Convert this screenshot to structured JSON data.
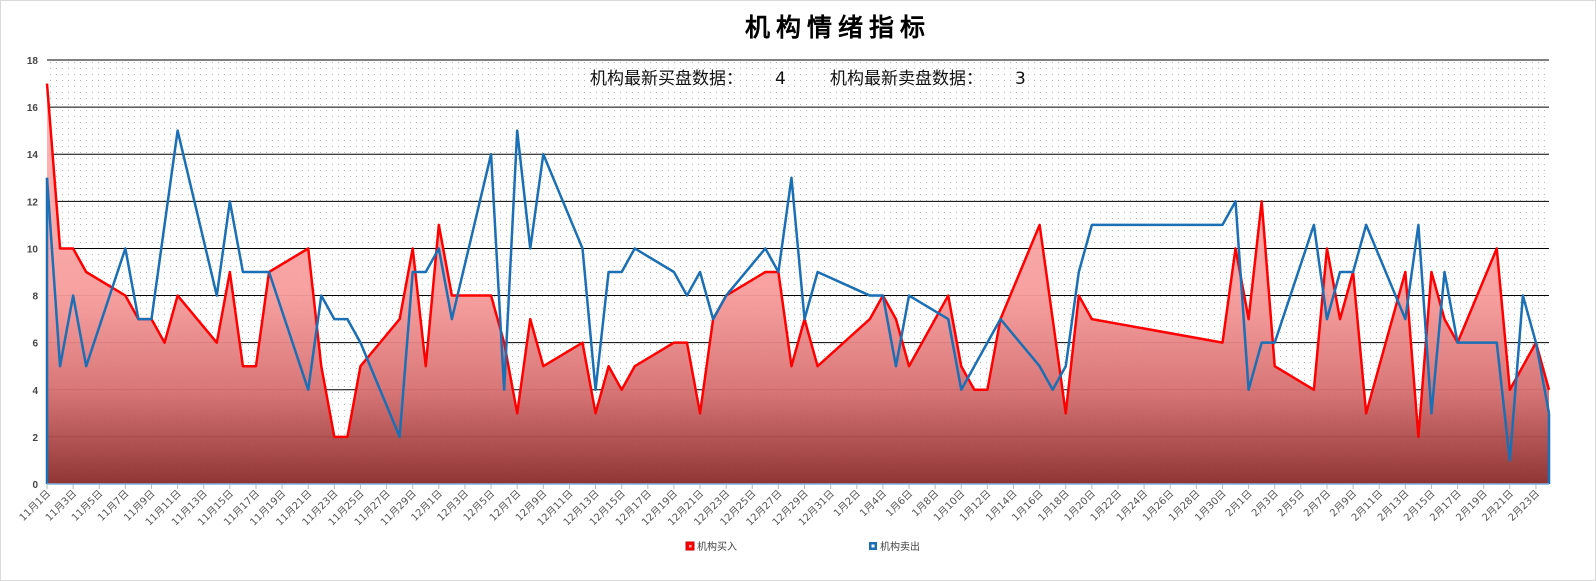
{
  "chart_data": {
    "type": "area+line",
    "title": "机构情绪指标",
    "subtitle": {
      "buy_label": "机构最新买盘数据：",
      "buy_value": "4",
      "sell_label": "机构最新卖盘数据：",
      "sell_value": "3"
    },
    "ylim": [
      0,
      18
    ],
    "y_ticks": [
      "0",
      "2",
      "4",
      "6",
      "8",
      "10",
      "12",
      "14",
      "16",
      "18"
    ],
    "grid": true,
    "legend_position": "bottom",
    "x_tick_labels": [
      "11月1日",
      "11月3日",
      "11月5日",
      "11月7日",
      "11月9日",
      "11月11日",
      "11月13日",
      "11月15日",
      "11月17日",
      "11月19日",
      "11月21日",
      "11月23日",
      "11月25日",
      "11月27日",
      "11月29日",
      "12月1日",
      "12月3日",
      "12月5日",
      "12月7日",
      "12月9日",
      "12月11日",
      "12月13日",
      "12月15日",
      "12月17日",
      "12月19日",
      "12月21日",
      "12月23日",
      "12月25日",
      "12月27日",
      "12月29日",
      "12月31日",
      "1月2日",
      "1月4日",
      "1月6日",
      "1月8日",
      "1月10日",
      "1月12日",
      "1月14日",
      "1月16日",
      "1月18日",
      "1月20日",
      "1月22日",
      "1月24日",
      "1月26日",
      "1月28日",
      "1月30日",
      "2月1日",
      "2月3日",
      "2月5日",
      "2月7日",
      "2月9日",
      "2月11日",
      "2月13日",
      "2月15日",
      "2月17日",
      "2月19日",
      "2月21日",
      "2月23日"
    ],
    "x": [
      "11月1日",
      "11月2日",
      "11月3日",
      "11月4日",
      "11月7日",
      "11月8日",
      "11月9日",
      "11月10日",
      "11月11日",
      "11月14日",
      "11月15日",
      "11月16日",
      "11月17日",
      "11月18日",
      "11月21日",
      "11月22日",
      "11月23日",
      "11月24日",
      "11月25日",
      "11月28日",
      "11月29日",
      "11月30日",
      "12月1日",
      "12月2日",
      "12月5日",
      "12月6日",
      "12月7日",
      "12月8日",
      "12月9日",
      "12月12日",
      "12月13日",
      "12月14日",
      "12月15日",
      "12月16日",
      "12月19日",
      "12月20日",
      "12月21日",
      "12月22日",
      "12月23日",
      "12月26日",
      "12月27日",
      "12月28日",
      "12月29日",
      "12月30日",
      "1月3日",
      "1月4日",
      "1月5日",
      "1月6日",
      "1月9日",
      "1月10日",
      "1月11日",
      "1月12日",
      "1月13日",
      "1月16日",
      "1月17日",
      "1月18日",
      "1月19日",
      "1月20日",
      "1月30日",
      "1月31日",
      "2月1日",
      "2月2日",
      "2月3日",
      "2月6日",
      "2月7日",
      "2月8日",
      "2月9日",
      "2月10日",
      "2月13日",
      "2月14日",
      "2月15日",
      "2月16日",
      "2月17日",
      "2月20日",
      "2月21日",
      "2月22日",
      "2月23日",
      "2月24日"
    ],
    "series": [
      {
        "name": "机构买入",
        "color": "#ff0000",
        "style": "area",
        "values": [
          17,
          10,
          10,
          9,
          8,
          7,
          7,
          6,
          8,
          6,
          9,
          5,
          5,
          9,
          10,
          5,
          2,
          2,
          5,
          7,
          10,
          5,
          11,
          8,
          8,
          6,
          3,
          7,
          5,
          6,
          3,
          5,
          4,
          5,
          6,
          6,
          3,
          7,
          8,
          9,
          9,
          5,
          7,
          5,
          7,
          8,
          7,
          5,
          8,
          5,
          4,
          4,
          7,
          11,
          7,
          3,
          8,
          7,
          6,
          10,
          7,
          12,
          5,
          4,
          10,
          7,
          9,
          3,
          9,
          2,
          9,
          7,
          6,
          10,
          4,
          5,
          6,
          4
        ]
      },
      {
        "name": "机构卖出",
        "color": "#1a6fb5",
        "style": "line",
        "values": [
          13,
          5,
          8,
          5,
          10,
          7,
          7,
          11,
          15,
          8,
          12,
          9,
          9,
          9,
          4,
          8,
          7,
          7,
          6,
          2,
          9,
          9,
          10,
          7,
          14,
          4,
          15,
          10,
          14,
          10,
          4,
          9,
          9,
          10,
          9,
          8,
          9,
          7,
          8,
          10,
          9,
          13,
          7,
          9,
          8,
          8,
          5,
          8,
          7,
          4,
          5,
          6,
          7,
          5,
          4,
          5,
          9,
          11,
          11,
          12,
          4,
          6,
          6,
          11,
          7,
          9,
          9,
          11,
          7,
          11,
          3,
          9,
          6,
          6,
          1,
          8,
          6,
          3
        ]
      }
    ]
  }
}
